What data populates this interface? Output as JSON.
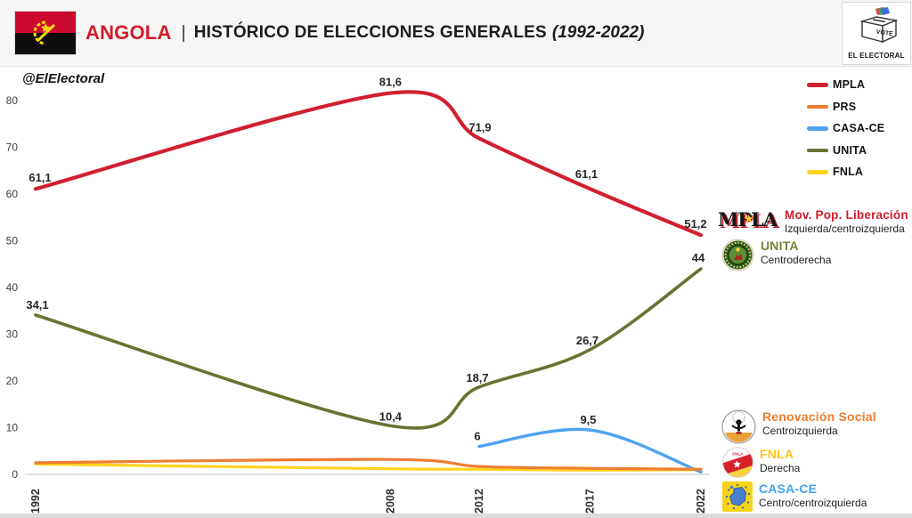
{
  "header": {
    "country": "ANGOLA",
    "separator": "|",
    "title": "HISTÓRICO DE ELECCIONES GENERALES",
    "years": "(1992-2022)"
  },
  "brand": {
    "vote": "VOTE",
    "name": "EL ELECTORAL"
  },
  "watermark": "@ElElectoral",
  "logos": {
    "mpla_wordmark": "MPLA",
    "mpla_star": "★",
    "fnla_seal_text": "FNLA"
  },
  "legend": {
    "position": "top-right",
    "items": [
      {
        "label": "MPLA",
        "color": "#d01f2f"
      },
      {
        "label": "PRS",
        "color": "#ed7d31"
      },
      {
        "label": "CASA-CE",
        "color": "#4da3f0"
      },
      {
        "label": "UNITA",
        "color": "#6b7231"
      },
      {
        "label": "FNLA",
        "color": "#ffd21e"
      }
    ]
  },
  "chart_data": {
    "type": "line",
    "title": "ANGOLA | HISTÓRICO DE ELECCIONES GENERALES (1992-2022)",
    "xlabel": "",
    "ylabel": "",
    "xlim": [
      1992,
      2022
    ],
    "ylim": [
      0,
      85
    ],
    "grid": false,
    "legend_position": "top-right",
    "x_ticks": [
      "1992",
      "2008",
      "2012",
      "2017",
      "2022"
    ],
    "x_tick_years": [
      1992,
      2008,
      2012,
      2017,
      2022
    ],
    "y_ticks": [
      0,
      10,
      20,
      30,
      40,
      50,
      60,
      70,
      80
    ],
    "series": [
      {
        "name": "MPLA",
        "color": "#d01f2f",
        "width": 4.2,
        "points": [
          {
            "x": 1992,
            "y": 61.1,
            "label": "61,1",
            "dx": 5,
            "dy": -8
          },
          {
            "x": 2008,
            "y": 81.6,
            "label": "81,6",
            "dx": 0,
            "dy": -8
          },
          {
            "x": 2012,
            "y": 71.9,
            "label": "71,9",
            "dx": 1,
            "dy": -8
          },
          {
            "x": 2017,
            "y": 61.1,
            "label": "61,1",
            "dx": -4,
            "dy": -12
          },
          {
            "x": 2022,
            "y": 51.2,
            "label": "51,2",
            "dx": -6,
            "dy": -8
          }
        ]
      },
      {
        "name": "PRS",
        "color": "#ed7d31",
        "width": 3.2,
        "points": [
          {
            "x": 1992,
            "y": 2.5
          },
          {
            "x": 2008,
            "y": 3.2
          },
          {
            "x": 2012,
            "y": 1.7
          },
          {
            "x": 2017,
            "y": 1.3
          },
          {
            "x": 2022,
            "y": 1.1
          }
        ]
      },
      {
        "name": "CASA-CE",
        "color": "#4da3f0",
        "width": 3.4,
        "points": [
          {
            "x": 2012,
            "y": 6,
            "label": "6",
            "dx": -2,
            "dy": -7
          },
          {
            "x": 2017,
            "y": 9.5,
            "label": "9,5",
            "dx": -2,
            "dy": -7
          },
          {
            "x": 2022,
            "y": 0.5
          }
        ]
      },
      {
        "name": "UNITA",
        "color": "#6b7231",
        "width": 3.6,
        "points": [
          {
            "x": 1992,
            "y": 34.1,
            "label": "34,1",
            "dx": 2,
            "dy": -7
          },
          {
            "x": 2008,
            "y": 10.4,
            "label": "10,4",
            "dx": 0,
            "dy": -6
          },
          {
            "x": 2012,
            "y": 18.7,
            "label": "18,7",
            "dx": -2,
            "dy": -6
          },
          {
            "x": 2017,
            "y": 26.7,
            "label": "26,7",
            "dx": -3,
            "dy": -6
          },
          {
            "x": 2022,
            "y": 44,
            "label": "44",
            "dx": -3,
            "dy": -8
          }
        ]
      },
      {
        "name": "FNLA",
        "color": "#ffd21e",
        "width": 3.2,
        "points": [
          {
            "x": 1992,
            "y": 2.2
          },
          {
            "x": 2008,
            "y": 1.2
          },
          {
            "x": 2012,
            "y": 1.1
          },
          {
            "x": 2017,
            "y": 0.9
          },
          {
            "x": 2022,
            "y": 1.0
          }
        ]
      }
    ]
  },
  "annotations": {
    "items": [
      {
        "name": "Mov. Pop. Liberación",
        "orientation": "Izquierda/centroizquierda",
        "color": "#cf1b2b"
      },
      {
        "name": "UNITA",
        "orientation": "Centroderecha",
        "color": "#76813a"
      },
      {
        "name": "Renovación Social",
        "orientation": "Centroizquierda",
        "color": "#ed7d31"
      },
      {
        "name": "FNLA",
        "orientation": "Derecha",
        "color": "#ffc418"
      },
      {
        "name": "CASA-CE",
        "orientation": "Centro/centroizquierda",
        "color": "#3fa3f2"
      }
    ]
  }
}
